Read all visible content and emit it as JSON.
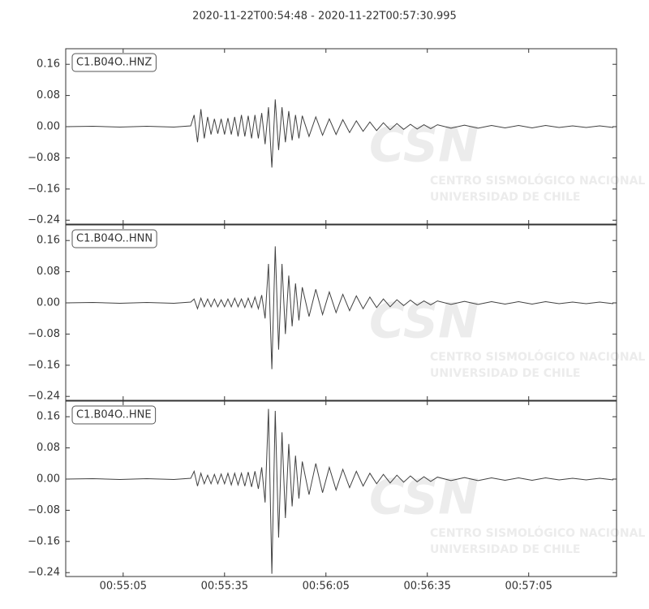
{
  "chart_data": {
    "type": "line",
    "title": "2020-11-22T00:54:48  -  2020-11-22T00:57:30.995",
    "watermark": {
      "logo": "CSN",
      "line1": "CENTRO SISMOLÓGICO NACIONAL",
      "line2": "UNIVERSIDAD DE CHILE"
    },
    "xlim": [
      0,
      162.995
    ],
    "xticks": [
      {
        "value": 17,
        "label": "00:55:05"
      },
      {
        "value": 47,
        "label": "00:55:35"
      },
      {
        "value": 77,
        "label": "00:56:05"
      },
      {
        "value": 107,
        "label": "00:56:35"
      },
      {
        "value": 137,
        "label": "00:57:05"
      }
    ],
    "ylim": [
      -0.25,
      0.2
    ],
    "yticks": [
      {
        "value": -0.24,
        "label": "−0.24"
      },
      {
        "value": -0.16,
        "label": "−0.16"
      },
      {
        "value": -0.08,
        "label": "−0.08"
      },
      {
        "value": 0,
        "label": "0.00"
      },
      0.08,
      0.16
    ],
    "x": [
      0,
      8,
      16,
      24,
      32,
      37,
      38,
      39,
      40,
      41,
      42,
      43,
      44,
      45,
      46,
      47,
      48,
      49,
      50,
      51,
      52,
      53,
      54,
      55,
      56,
      57,
      58,
      59,
      60,
      61,
      62,
      63,
      64,
      65,
      66,
      67,
      68,
      69,
      70,
      72,
      74,
      76,
      78,
      80,
      82,
      84,
      86,
      88,
      90,
      92,
      94,
      96,
      98,
      100,
      102,
      104,
      106,
      108,
      110,
      114,
      118,
      122,
      126,
      130,
      134,
      138,
      142,
      146,
      150,
      154,
      158,
      162
    ],
    "series": [
      {
        "name": "C1.B04O..HNZ",
        "color": "#404040",
        "values": [
          0,
          0.001,
          -0.001,
          0.001,
          -0.001,
          0.002,
          0.03,
          -0.04,
          0.045,
          -0.03,
          0.025,
          -0.02,
          0.02,
          -0.018,
          0.02,
          -0.02,
          0.022,
          -0.02,
          0.025,
          -0.025,
          0.03,
          -0.025,
          0.028,
          -0.03,
          0.03,
          -0.03,
          0.035,
          -0.045,
          0.05,
          -0.105,
          0.07,
          -0.06,
          0.05,
          -0.04,
          0.04,
          -0.035,
          0.03,
          -0.03,
          0.028,
          -0.025,
          0.025,
          -0.022,
          0.02,
          -0.02,
          0.018,
          -0.015,
          0.015,
          -0.012,
          0.012,
          -0.01,
          0.01,
          -0.008,
          0.008,
          -0.007,
          0.006,
          -0.006,
          0.005,
          -0.005,
          0.005,
          -0.004,
          0.004,
          -0.004,
          0.003,
          -0.003,
          0.003,
          -0.003,
          0.003,
          -0.002,
          0.002,
          -0.002,
          0.002,
          -0.002
        ]
      },
      {
        "name": "C1.B04O..HNN",
        "color": "#404040",
        "values": [
          0,
          0.001,
          -0.001,
          0.001,
          -0.001,
          0.002,
          0.01,
          -0.015,
          0.012,
          -0.01,
          0.01,
          -0.01,
          0.01,
          -0.01,
          0.008,
          -0.01,
          0.01,
          -0.01,
          0.012,
          -0.01,
          0.01,
          -0.012,
          0.012,
          -0.012,
          0.015,
          -0.015,
          0.02,
          -0.04,
          0.1,
          -0.17,
          0.145,
          -0.12,
          0.1,
          -0.08,
          0.07,
          -0.06,
          0.05,
          -0.045,
          0.04,
          -0.035,
          0.035,
          -0.03,
          0.028,
          -0.025,
          0.022,
          -0.02,
          0.018,
          -0.015,
          0.015,
          -0.012,
          0.01,
          -0.01,
          0.008,
          -0.007,
          0.007,
          -0.006,
          0.005,
          -0.005,
          0.005,
          -0.004,
          0.004,
          -0.004,
          0.003,
          -0.003,
          0.003,
          -0.003,
          0.003,
          -0.002,
          0.002,
          -0.002,
          0.002,
          -0.002
        ]
      },
      {
        "name": "C1.B04O..HNE",
        "color": "#404040",
        "values": [
          0,
          0.001,
          -0.001,
          0.001,
          -0.001,
          0.002,
          0.02,
          -0.018,
          0.015,
          -0.012,
          0.01,
          -0.012,
          0.012,
          -0.012,
          0.013,
          -0.012,
          0.015,
          -0.015,
          0.015,
          -0.015,
          0.015,
          -0.018,
          0.018,
          -0.02,
          0.02,
          -0.025,
          0.03,
          -0.06,
          0.18,
          -0.243,
          0.175,
          -0.15,
          0.12,
          -0.1,
          0.09,
          -0.07,
          0.06,
          -0.05,
          0.045,
          -0.04,
          0.04,
          -0.035,
          0.03,
          -0.028,
          0.025,
          -0.022,
          0.02,
          -0.018,
          0.015,
          -0.012,
          0.012,
          -0.01,
          0.01,
          -0.008,
          0.008,
          -0.007,
          0.006,
          -0.006,
          0.005,
          -0.004,
          0.004,
          -0.004,
          0.003,
          -0.003,
          0.003,
          -0.003,
          0.003,
          -0.002,
          0.002,
          -0.002,
          0.002,
          -0.002
        ]
      }
    ]
  }
}
